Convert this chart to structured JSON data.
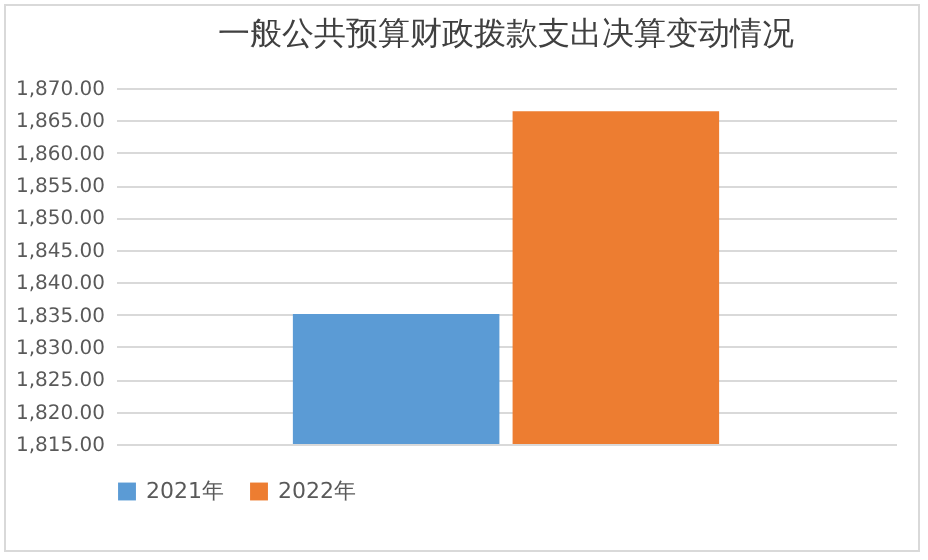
{
  "chart_data": {
    "type": "bar",
    "title": "一般公共预算财政拨款支出决算变动情况",
    "categories": [
      null
    ],
    "series": [
      {
        "name": "2021年",
        "color": "#5b9bd5",
        "values": [
          1835.1
        ]
      },
      {
        "name": "2022年",
        "color": "#ed7d31",
        "values": [
          1866.4
        ]
      }
    ],
    "ylim": [
      1815,
      1870
    ],
    "yticks": [
      {
        "value": 1815,
        "label": "1,815.00"
      },
      {
        "value": 1820,
        "label": "1,820.00"
      },
      {
        "value": 1825,
        "label": "1,825.00"
      },
      {
        "value": 1830,
        "label": "1,830.00"
      },
      {
        "value": 1835,
        "label": "1,835.00"
      },
      {
        "value": 1840,
        "label": "1,840.00"
      },
      {
        "value": 1845,
        "label": "1,845.00"
      },
      {
        "value": 1850,
        "label": "1,850.00"
      },
      {
        "value": 1855,
        "label": "1,855.00"
      },
      {
        "value": 1860,
        "label": "1,860.00"
      },
      {
        "value": 1865,
        "label": "1,865.00"
      },
      {
        "value": 1870,
        "label": "1,870.00"
      }
    ],
    "grid": "y",
    "legend": "bottom"
  }
}
